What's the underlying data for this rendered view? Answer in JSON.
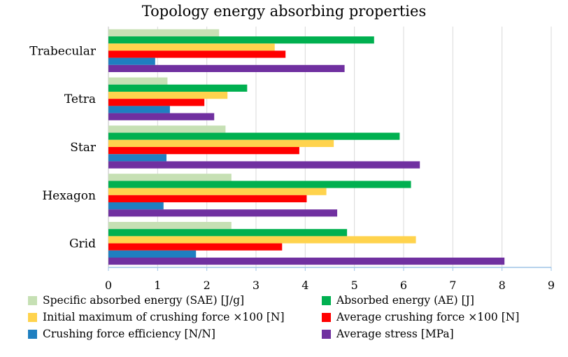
{
  "chart_data": {
    "type": "bar",
    "orientation": "horizontal",
    "title": "Topology energy absorbing properties",
    "categories": [
      "Trabecular",
      "Tetra",
      "Star",
      "Hexagon",
      "Grid"
    ],
    "xlim": [
      0,
      9
    ],
    "xticks": [
      "0",
      "1",
      "2",
      "3",
      "4",
      "5",
      "6",
      "7",
      "8",
      "9"
    ],
    "grid": true,
    "legend_position": "bottom",
    "series": [
      {
        "name": "Specific absorbed energy (SAE) [J/g]",
        "color": "#c6e0b4",
        "values": [
          2.25,
          1.2,
          2.38,
          2.5,
          2.5
        ]
      },
      {
        "name": "Absorbed energy (AE) [J]",
        "color": "#00b050",
        "values": [
          5.4,
          2.82,
          5.92,
          6.15,
          4.85
        ]
      },
      {
        "name": "Initial maximum of crushing force ×100 [N]",
        "color": "#ffd34d",
        "values": [
          3.38,
          2.42,
          4.58,
          4.43,
          6.25
        ]
      },
      {
        "name": "Average crushing force ×100 [N]",
        "color": "#ff0000",
        "values": [
          3.6,
          1.95,
          3.88,
          4.03,
          3.53
        ]
      },
      {
        "name": "Crushing force efficiency [N/N]",
        "color": "#1f7fc0",
        "values": [
          0.95,
          1.25,
          1.18,
          1.12,
          1.78
        ]
      },
      {
        "name": "Average stress [MPa]",
        "color": "#7030a0",
        "values": [
          4.8,
          2.15,
          6.33,
          4.65,
          8.05
        ]
      }
    ]
  }
}
